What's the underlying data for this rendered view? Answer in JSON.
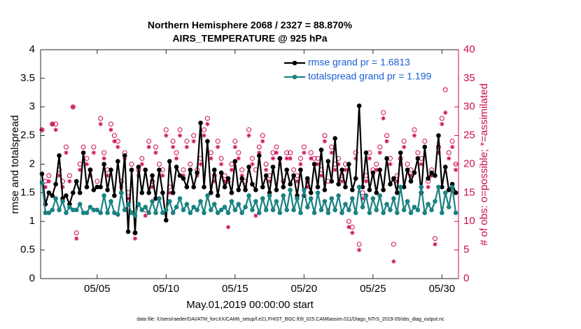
{
  "chart_data": {
    "type": "line",
    "title": "Northern Hemisphere 2068 / 2327 = 88.870%",
    "subtitle": "AIRS_TEMPERATURE @ 925 hPa",
    "xlabel": "May.01,2019 00:00:00 start",
    "ylabel": "rmse and totalspread",
    "y2label": "# of obs: o=possible; *=assimilated",
    "footnote": "data file: /Users/raeder/DAI/ATM_forcXX/CAM6_setup/f.e21.FHIST_BGC.f09_025.CAM6assim.011/Diags_NTrS_2019-05/obs_diag_output.nc",
    "xlim": [
      0.9,
      31.2
    ],
    "xticks": [
      {
        "value": 5,
        "label": "05/05"
      },
      {
        "value": 10,
        "label": "05/10"
      },
      {
        "value": 15,
        "label": "05/15"
      },
      {
        "value": 20,
        "label": "05/20"
      },
      {
        "value": 25,
        "label": "05/25"
      },
      {
        "value": 30,
        "label": "05/30"
      }
    ],
    "ylim": [
      0,
      4
    ],
    "yticks": [
      0,
      0.5,
      1,
      1.5,
      2,
      2.5,
      3,
      3.5,
      4
    ],
    "y2lim": [
      0,
      40
    ],
    "y2ticks": [
      0,
      5,
      10,
      15,
      20,
      25,
      30,
      35,
      40
    ],
    "y2color": "#cc0a55",
    "legend": "upper right",
    "x": [
      1,
      1.25,
      1.5,
      1.75,
      2,
      2.25,
      2.5,
      2.75,
      3,
      3.25,
      3.5,
      3.75,
      4,
      4.25,
      4.5,
      4.75,
      5,
      5.25,
      5.5,
      5.75,
      6,
      6.25,
      6.5,
      6.75,
      7,
      7.25,
      7.5,
      7.75,
      8,
      8.25,
      8.5,
      8.75,
      9,
      9.25,
      9.5,
      9.75,
      10,
      10.25,
      10.5,
      10.75,
      11,
      11.25,
      11.5,
      11.75,
      12,
      12.25,
      12.5,
      12.75,
      13,
      13.25,
      13.5,
      13.75,
      14,
      14.25,
      14.5,
      14.75,
      15,
      15.25,
      15.5,
      15.75,
      16,
      16.25,
      16.5,
      16.75,
      17,
      17.25,
      17.5,
      17.75,
      18,
      18.25,
      18.5,
      18.75,
      19,
      19.25,
      19.5,
      19.75,
      20,
      20.25,
      20.5,
      20.75,
      21,
      21.25,
      21.5,
      21.75,
      22,
      22.25,
      22.5,
      22.75,
      23,
      23.25,
      23.5,
      23.75,
      24,
      24.25,
      24.5,
      24.75,
      25,
      25.25,
      25.5,
      25.75,
      26,
      26.25,
      26.5,
      26.75,
      27,
      27.25,
      27.5,
      27.75,
      28,
      28.25,
      28.5,
      28.75,
      29,
      29.25,
      29.5,
      29.75,
      30,
      30.25,
      30.5,
      30.75,
      31
    ],
    "series": [
      {
        "name": "rmse grand pr = 1.6813",
        "color": "#000000",
        "marker": "o",
        "values": [
          1.83,
          1.3,
          1.5,
          1.45,
          1.65,
          2.15,
          1.4,
          1.45,
          1.3,
          1.5,
          1.7,
          1.5,
          2.2,
          1.6,
          1.9,
          1.55,
          1.6,
          1.6,
          2.0,
          1.55,
          1.9,
          1.45,
          2.05,
          1.5,
          2.15,
          0.82,
          1.9,
          0.8,
          1.95,
          1.5,
          1.9,
          1.5,
          1.8,
          1.4,
          1.9,
          1.5,
          1.02,
          2.05,
          1.5,
          1.95,
          1.8,
          1.75,
          1.6,
          1.9,
          1.6,
          1.85,
          2.72,
          1.6,
          2.4,
          1.5,
          1.9,
          1.45,
          1.85,
          1.6,
          1.75,
          1.5,
          2.05,
          1.55,
          1.75,
          1.55,
          1.95,
          1.65,
          1.55,
          2.15,
          1.6,
          1.8,
          1.5,
          1.95,
          1.55,
          2.1,
          1.6,
          1.9,
          1.65,
          1.8,
          1.45,
          1.9,
          1.45,
          1.75,
          1.5,
          2.0,
          1.6,
          2.25,
          1.55,
          2.05,
          1.7,
          2.45,
          1.65,
          1.9,
          1.6,
          2.0,
          1.55,
          1.75,
          3.02,
          1.6,
          2.2,
          1.55,
          1.85,
          1.5,
          1.9,
          1.55,
          2.1,
          1.65,
          1.75,
          1.5,
          2.2,
          1.6,
          1.9,
          1.7,
          1.85,
          2.1,
          1.5,
          2.3,
          1.75,
          1.85,
          1.8,
          2.5,
          1.6,
          1.95,
          1.55,
          1.65,
          1.5
        ]
      },
      {
        "name": "totalspread grand pr = 1.199",
        "color": "#1a8282",
        "marker": "o",
        "values": [
          1.68,
          1.15,
          1.15,
          1.2,
          1.4,
          1.2,
          1.35,
          1.15,
          1.25,
          1.2,
          1.2,
          1.3,
          1.15,
          1.15,
          1.25,
          1.2,
          1.2,
          1.15,
          1.45,
          1.15,
          1.35,
          1.15,
          1.12,
          1.5,
          1.2,
          1.3,
          1.15,
          1.1,
          1.3,
          1.2,
          1.25,
          1.15,
          1.35,
          1.15,
          1.4,
          1.15,
          1.2,
          1.35,
          1.15,
          1.25,
          1.4,
          1.2,
          1.3,
          1.15,
          1.25,
          1.2,
          1.35,
          1.15,
          1.45,
          1.2,
          1.3,
          1.15,
          1.2,
          1.25,
          1.15,
          1.35,
          1.2,
          1.3,
          1.15,
          1.25,
          1.45,
          1.2,
          1.35,
          1.15,
          1.4,
          1.2,
          1.45,
          1.2,
          1.35,
          1.15,
          1.45,
          1.2,
          1.55,
          1.2,
          1.4,
          1.15,
          1.55,
          1.25,
          1.4,
          1.15,
          1.5,
          1.2,
          1.35,
          1.15,
          1.4,
          1.2,
          1.45,
          1.15,
          1.3,
          1.2,
          1.4,
          1.15,
          1.6,
          1.25,
          1.45,
          1.15,
          1.4,
          1.2,
          1.45,
          1.15,
          1.3,
          1.2,
          1.4,
          1.15,
          1.6,
          1.2,
          1.35,
          1.15,
          1.25,
          1.2,
          1.6,
          1.15,
          1.3,
          1.2,
          1.35,
          1.6,
          1.15,
          1.5,
          1.25,
          1.6,
          1.15
        ]
      },
      {
        "axis": "y2",
        "color": "#cc0a55",
        "marker": "open-circle",
        "values": [
          26,
          17,
          18,
          27,
          27,
          19,
          17,
          23,
          18,
          30,
          8,
          20,
          23,
          21,
          19,
          23,
          17,
          28,
          22,
          19,
          27,
          25,
          24,
          17,
          22,
          15,
          20,
          8,
          19,
          21,
          12,
          24,
          17,
          23,
          20,
          19,
          26,
          16,
          24,
          22,
          26,
          19,
          24,
          20,
          25,
          19,
          21,
          26,
          28,
          22,
          18,
          24,
          21,
          18,
          17,
          20,
          24,
          22,
          19,
          17,
          26,
          21,
          19,
          23,
          25,
          20,
          18,
          22,
          23,
          21,
          17,
          22,
          22,
          19,
          18,
          21,
          23,
          17,
          22,
          21,
          21,
          19,
          25,
          17,
          23,
          20,
          21,
          18,
          20,
          10,
          9,
          22,
          6,
          15,
          18,
          22,
          19,
          20,
          23,
          29,
          25,
          21,
          6,
          18,
          21,
          24,
          20,
          19,
          26,
          22,
          21,
          24,
          17,
          19,
          7,
          23,
          28,
          33,
          22,
          24,
          20
        ]
      },
      {
        "axis": "y2",
        "color": "#cc0a55",
        "marker": "asterisk",
        "values": [
          26,
          16,
          17,
          27,
          26,
          18,
          16,
          22,
          17,
          30,
          7,
          19,
          22,
          20,
          18,
          22,
          16,
          27,
          21,
          18,
          26,
          24,
          23,
          16,
          21,
          14,
          19,
          7,
          18,
          20,
          11,
          23,
          16,
          22,
          19,
          18,
          25,
          15,
          23,
          21,
          25,
          18,
          23,
          19,
          24,
          18,
          20,
          25,
          27,
          21,
          17,
          23,
          20,
          17,
          9,
          19,
          23,
          21,
          18,
          16,
          25,
          20,
          11,
          22,
          24,
          19,
          17,
          21,
          22,
          20,
          16,
          21,
          21,
          18,
          17,
          20,
          22,
          16,
          21,
          20,
          20,
          18,
          24,
          12,
          22,
          19,
          20,
          17,
          19,
          9,
          8,
          21,
          5,
          14,
          17,
          21,
          18,
          19,
          22,
          28,
          24,
          20,
          3,
          17,
          20,
          23,
          19,
          18,
          25,
          21,
          20,
          23,
          16,
          18,
          6,
          22,
          27,
          29,
          21,
          23,
          19
        ]
      }
    ]
  }
}
